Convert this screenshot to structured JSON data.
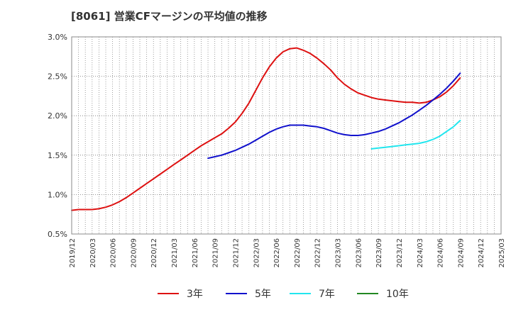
{
  "chart_data": {
    "type": "line",
    "title": "[8061]  営業CFマージンの平均値の推移",
    "xlabel": "",
    "ylabel": "",
    "ylim": [
      0.5,
      3.0
    ],
    "yticks": [
      "3.0%",
      "2.5%",
      "2.0%",
      "1.5%",
      "1.0%",
      "0.5%"
    ],
    "ytick_values": [
      3.0,
      2.5,
      2.0,
      1.5,
      1.0,
      0.5
    ],
    "xticks": [
      "2019/12",
      "2020/03",
      "2020/06",
      "2020/09",
      "2020/12",
      "2021/03",
      "2021/06",
      "2021/09",
      "2021/12",
      "2022/03",
      "2022/06",
      "2022/09",
      "2022/12",
      "2023/03",
      "2023/06",
      "2023/09",
      "2023/12",
      "2024/03",
      "2024/06",
      "2024/09",
      "2024/12",
      "2025/03"
    ],
    "grid": true,
    "legend_position": "bottom",
    "series": [
      {
        "name": "3年",
        "color": "#dd1111",
        "points": [
          [
            "2019/12",
            0.8
          ],
          [
            "2020/01",
            0.81
          ],
          [
            "2020/02",
            0.81
          ],
          [
            "2020/03",
            0.81
          ],
          [
            "2020/04",
            0.82
          ],
          [
            "2020/05",
            0.84
          ],
          [
            "2020/06",
            0.87
          ],
          [
            "2020/07",
            0.91
          ],
          [
            "2020/08",
            0.96
          ],
          [
            "2020/09",
            1.02
          ],
          [
            "2020/10",
            1.08
          ],
          [
            "2020/11",
            1.14
          ],
          [
            "2020/12",
            1.2
          ],
          [
            "2021/01",
            1.26
          ],
          [
            "2021/02",
            1.32
          ],
          [
            "2021/03",
            1.38
          ],
          [
            "2021/04",
            1.44
          ],
          [
            "2021/05",
            1.5
          ],
          [
            "2021/06",
            1.56
          ],
          [
            "2021/07",
            1.62
          ],
          [
            "2021/08",
            1.67
          ],
          [
            "2021/09",
            1.72
          ],
          [
            "2021/10",
            1.77
          ],
          [
            "2021/11",
            1.84
          ],
          [
            "2021/12",
            1.92
          ],
          [
            "2022/01",
            2.03
          ],
          [
            "2022/02",
            2.16
          ],
          [
            "2022/03",
            2.32
          ],
          [
            "2022/04",
            2.48
          ],
          [
            "2022/05",
            2.62
          ],
          [
            "2022/06",
            2.73
          ],
          [
            "2022/07",
            2.81
          ],
          [
            "2022/08",
            2.85
          ],
          [
            "2022/09",
            2.86
          ],
          [
            "2022/10",
            2.83
          ],
          [
            "2022/11",
            2.79
          ],
          [
            "2022/12",
            2.73
          ],
          [
            "2023/01",
            2.66
          ],
          [
            "2023/02",
            2.58
          ],
          [
            "2023/03",
            2.48
          ],
          [
            "2023/04",
            2.4
          ],
          [
            "2023/05",
            2.34
          ],
          [
            "2023/06",
            2.29
          ],
          [
            "2023/07",
            2.26
          ],
          [
            "2023/08",
            2.23
          ],
          [
            "2023/09",
            2.21
          ],
          [
            "2023/10",
            2.2
          ],
          [
            "2023/11",
            2.19
          ],
          [
            "2023/12",
            2.18
          ],
          [
            "2024/01",
            2.17
          ],
          [
            "2024/02",
            2.17
          ],
          [
            "2024/03",
            2.16
          ],
          [
            "2024/04",
            2.17
          ],
          [
            "2024/05",
            2.2
          ],
          [
            "2024/06",
            2.24
          ],
          [
            "2024/07",
            2.3
          ],
          [
            "2024/08",
            2.38
          ],
          [
            "2024/09",
            2.48
          ]
        ]
      },
      {
        "name": "5年",
        "color": "#1111cc",
        "points": [
          [
            "2021/08",
            1.46
          ],
          [
            "2021/09",
            1.48
          ],
          [
            "2021/10",
            1.5
          ],
          [
            "2021/11",
            1.53
          ],
          [
            "2021/12",
            1.56
          ],
          [
            "2022/01",
            1.6
          ],
          [
            "2022/02",
            1.64
          ],
          [
            "2022/03",
            1.69
          ],
          [
            "2022/04",
            1.74
          ],
          [
            "2022/05",
            1.79
          ],
          [
            "2022/06",
            1.83
          ],
          [
            "2022/07",
            1.86
          ],
          [
            "2022/08",
            1.88
          ],
          [
            "2022/09",
            1.88
          ],
          [
            "2022/10",
            1.88
          ],
          [
            "2022/11",
            1.87
          ],
          [
            "2022/12",
            1.86
          ],
          [
            "2023/01",
            1.84
          ],
          [
            "2023/02",
            1.81
          ],
          [
            "2023/03",
            1.78
          ],
          [
            "2023/04",
            1.76
          ],
          [
            "2023/05",
            1.75
          ],
          [
            "2023/06",
            1.75
          ],
          [
            "2023/07",
            1.76
          ],
          [
            "2023/08",
            1.78
          ],
          [
            "2023/09",
            1.8
          ],
          [
            "2023/10",
            1.83
          ],
          [
            "2023/11",
            1.87
          ],
          [
            "2023/12",
            1.91
          ],
          [
            "2024/01",
            1.96
          ],
          [
            "2024/02",
            2.01
          ],
          [
            "2024/03",
            2.07
          ],
          [
            "2024/04",
            2.13
          ],
          [
            "2024/05",
            2.2
          ],
          [
            "2024/06",
            2.27
          ],
          [
            "2024/07",
            2.35
          ],
          [
            "2024/08",
            2.44
          ],
          [
            "2024/09",
            2.54
          ]
        ]
      },
      {
        "name": "7年",
        "color": "#22e6ee",
        "points": [
          [
            "2023/08",
            1.58
          ],
          [
            "2023/09",
            1.59
          ],
          [
            "2023/10",
            1.6
          ],
          [
            "2023/11",
            1.61
          ],
          [
            "2023/12",
            1.62
          ],
          [
            "2024/01",
            1.63
          ],
          [
            "2024/02",
            1.64
          ],
          [
            "2024/03",
            1.65
          ],
          [
            "2024/04",
            1.67
          ],
          [
            "2024/05",
            1.7
          ],
          [
            "2024/06",
            1.74
          ],
          [
            "2024/07",
            1.8
          ],
          [
            "2024/08",
            1.86
          ],
          [
            "2024/09",
            1.94
          ]
        ]
      },
      {
        "name": "10年",
        "color": "#228822",
        "points": []
      }
    ]
  }
}
